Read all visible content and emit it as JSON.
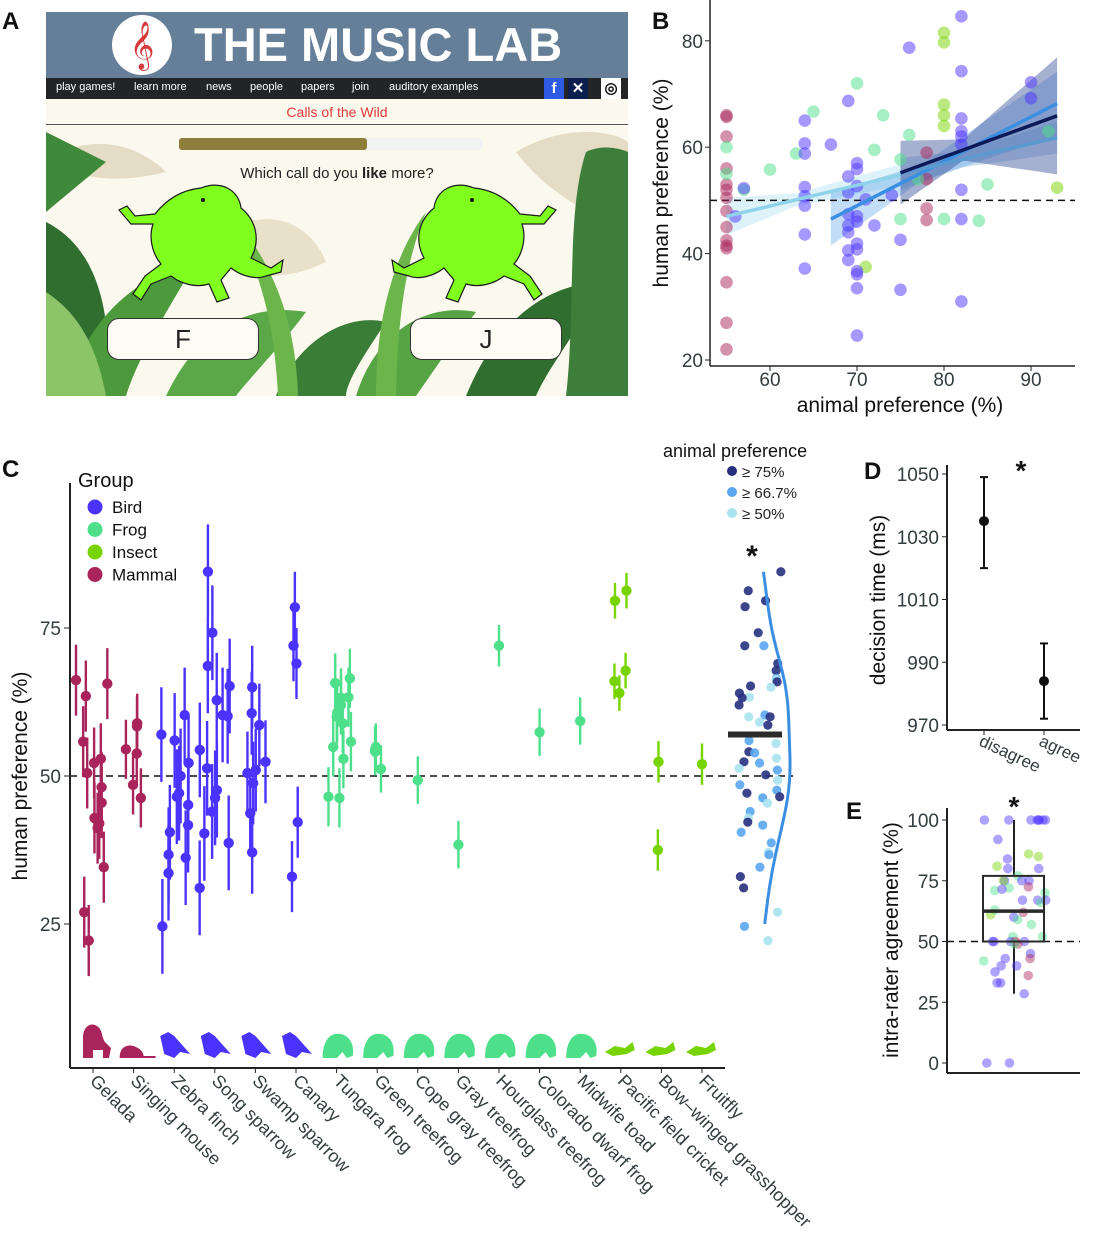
{
  "panel_labels": {
    "a": "A",
    "b": "B",
    "c": "C",
    "d": "D",
    "e": "E"
  },
  "panel_a": {
    "site_title": "THE MUSIC LAB",
    "logo_glyph": "𝄞",
    "nav": [
      "play games!",
      "learn more",
      "news",
      "people",
      "papers",
      "join",
      "auditory examples"
    ],
    "social": [
      {
        "icon": "facebook-icon",
        "glyph": "f",
        "color": "#2d5be3"
      },
      {
        "icon": "butterfly-icon",
        "glyph": "✕",
        "color": "#0b1e4e"
      },
      {
        "icon": "instagram-icon",
        "glyph": "◎",
        "color": "#ffffff"
      }
    ],
    "game_title": "Calls of the Wild",
    "progress": 0.62,
    "question_before": "Which call do you ",
    "question_bold": "like",
    "question_after": " more?",
    "button_left": "F",
    "button_right": "J"
  },
  "colors": {
    "Bird": "#4b33ff",
    "Frog": "#4ddf8a",
    "Insect": "#78d400",
    "Mammal": "#a8245a",
    "tier1": "#27307f",
    "tier2": "#5aa6f0",
    "tier3": "#a9e3f0",
    "density": "#3a8fe0"
  },
  "chart_data": [
    {
      "panel": "B",
      "type": "scatter",
      "xlabel": "animal preference (%)",
      "ylabel": "human preference (%)",
      "xticks": [
        60,
        70,
        80,
        90
      ],
      "yticks": [
        20,
        40,
        60,
        80
      ],
      "xlim": [
        53,
        95
      ],
      "ylim": [
        19,
        87
      ],
      "reference_line_y": 50,
      "points": {
        "Mammal": [
          [
            55,
            66
          ],
          [
            55,
            65.7
          ],
          [
            55,
            62
          ],
          [
            55,
            56
          ],
          [
            55,
            53
          ],
          [
            55,
            52
          ],
          [
            55,
            50.5
          ],
          [
            55,
            48
          ],
          [
            55,
            45
          ],
          [
            55,
            42.5
          ],
          [
            55,
            41.5
          ],
          [
            55,
            41
          ],
          [
            55,
            34.6
          ],
          [
            55,
            27
          ],
          [
            55,
            22
          ],
          [
            78,
            59
          ],
          [
            78,
            54
          ],
          [
            78,
            48.5
          ],
          [
            78,
            46.3
          ]
        ],
        "Frog": [
          [
            55,
            60
          ],
          [
            55,
            55
          ],
          [
            57,
            52
          ],
          [
            60,
            55.8
          ],
          [
            63,
            58.8
          ],
          [
            65,
            66.7
          ],
          [
            70,
            72
          ],
          [
            72,
            59.5
          ],
          [
            73,
            66
          ],
          [
            75,
            57.7
          ],
          [
            75,
            46.5
          ],
          [
            76,
            62.3
          ],
          [
            77,
            54
          ],
          [
            80,
            46.5
          ],
          [
            84,
            46.2
          ],
          [
            85,
            53
          ],
          [
            92,
            63
          ]
        ],
        "Insect": [
          [
            80,
            81.5
          ],
          [
            80,
            79.7
          ],
          [
            80,
            68
          ],
          [
            80,
            66
          ],
          [
            80,
            64
          ],
          [
            71,
            37.5
          ],
          [
            93,
            52.4
          ]
        ],
        "Bird": [
          [
            56,
            47
          ],
          [
            57,
            52.3
          ],
          [
            64,
            65
          ],
          [
            64,
            60.7
          ],
          [
            64,
            58.8
          ],
          [
            64,
            52.5
          ],
          [
            64,
            50.8
          ],
          [
            64,
            49
          ],
          [
            64,
            43.6
          ],
          [
            64,
            37.2
          ],
          [
            67,
            60.5
          ],
          [
            69,
            68.7
          ],
          [
            69,
            54.5
          ],
          [
            69,
            51.5
          ],
          [
            69,
            47.4
          ],
          [
            69,
            45.3
          ],
          [
            69,
            44
          ],
          [
            69,
            40.6
          ],
          [
            69,
            38.8
          ],
          [
            70,
            57
          ],
          [
            70,
            55.9
          ],
          [
            70,
            52.7
          ],
          [
            70,
            47
          ],
          [
            70,
            46
          ],
          [
            70,
            41.9
          ],
          [
            70,
            40.8
          ],
          [
            70,
            36.7
          ],
          [
            70,
            36.1
          ],
          [
            70,
            33.5
          ],
          [
            70,
            24.6
          ],
          [
            71,
            50.2
          ],
          [
            72,
            45.3
          ],
          [
            74,
            51
          ],
          [
            75,
            42.6
          ],
          [
            75,
            33.2
          ],
          [
            76,
            78.7
          ],
          [
            82,
            84.6
          ],
          [
            82,
            74.3
          ],
          [
            82,
            65.4
          ],
          [
            82,
            63
          ],
          [
            82,
            62
          ],
          [
            82,
            60.5
          ],
          [
            82,
            52
          ],
          [
            82,
            46.5
          ],
          [
            82,
            31
          ],
          [
            90,
            72.2
          ],
          [
            90,
            69.2
          ]
        ]
      },
      "fits": [
        {
          "tier": "≥ 50%",
          "color": "#8fd3ea",
          "x": [
            55,
            75
          ],
          "y": [
            47,
            54.8
          ],
          "ci": [
            3.5,
            1.2,
            2
          ]
        },
        {
          "tier": "≥ 66.7%",
          "color": "#3a8fe0",
          "x": [
            67,
            93
          ],
          "y": [
            46.5,
            68.2
          ],
          "ci": [
            5,
            1.5,
            6
          ]
        },
        {
          "tier": "≥ 66.7% (upper)",
          "color": "#5a9ad0",
          "x": [
            75,
            93
          ],
          "y": [
            55,
            61.8
          ],
          "ci": [
            3,
            1.5,
            3
          ]
        },
        {
          "tier": "≥ 75%",
          "color": "#0d1a5a",
          "x": [
            75,
            93
          ],
          "y": [
            55.2,
            65.9
          ],
          "ci": [
            6,
            2,
            11
          ]
        }
      ]
    },
    {
      "panel": "C",
      "type": "scatter",
      "ylabel": "human preference (%)",
      "yticks": [
        25,
        50,
        75
      ],
      "ylim": [
        0,
        90
      ],
      "reference_line_y": 50,
      "legend_group": {
        "title": "Group",
        "entries": [
          "Bird",
          "Frog",
          "Insect",
          "Mammal"
        ],
        "placement": "top-left"
      },
      "legend_pref": {
        "title": "animal preference",
        "entries": [
          "≥ 75%",
          "≥ 66.7%",
          "≥ 50%"
        ],
        "placement": "top-right"
      },
      "species": [
        {
          "name": "Gelada",
          "group": "Mammal",
          "values": [
            66.2,
            65.6,
            63.5,
            55.8,
            52.9,
            52.2,
            50.5,
            48.1,
            45.5,
            42.9,
            42,
            41.2,
            34.6,
            27,
            22.2
          ],
          "ci": 6
        },
        {
          "name": "Singing mouse",
          "group": "Mammal",
          "values": [
            58.9,
            58.4,
            54.5,
            53.8,
            48.5,
            46.3
          ],
          "ci": 5
        },
        {
          "name": "Zebra finch",
          "group": "Bird",
          "values": [
            60.3,
            57,
            56,
            52.2,
            50,
            47.1,
            46.5,
            45.1,
            41.7,
            40.5,
            36.7,
            36.2,
            33.6,
            24.6
          ],
          "ci": 8
        },
        {
          "name": "Song sparrow",
          "group": "Bird",
          "values": [
            84.5,
            74.2,
            68.6,
            65.2,
            62.8,
            60.3,
            60.1,
            54.4,
            51.3,
            47.6,
            46.3,
            44,
            40.3,
            38.7,
            31.1
          ],
          "ci": 8
        },
        {
          "name": "Swamp sparrow",
          "group": "Bird",
          "values": [
            65,
            60.6,
            58.6,
            52.4,
            51,
            50.5,
            48.8,
            43.7,
            37.1
          ],
          "ci": 7
        },
        {
          "name": "Canary",
          "group": "Bird",
          "values": [
            78.5,
            72,
            69,
            42.2,
            33
          ],
          "ci": 6
        },
        {
          "name": "Tungara frog",
          "group": "Frog",
          "values": [
            66.5,
            65.7,
            63.3,
            63.2,
            62,
            60.7,
            60,
            58.9,
            55.8,
            54.9,
            52.9,
            46.5,
            46.3
          ],
          "ci": 5
        },
        {
          "name": "Green treefrog",
          "group": "Frog",
          "values": [
            54.1,
            54.4,
            54.9,
            51.2
          ],
          "ci": 4
        },
        {
          "name": "Cope gray treefrog",
          "group": "Frog",
          "values": [
            49.3
          ],
          "ci": 4
        },
        {
          "name": "Gray treefrog",
          "group": "Frog",
          "values": [
            38.4
          ],
          "ci": 4
        },
        {
          "name": "Hourglass treefrog",
          "group": "Frog",
          "values": [
            72
          ],
          "ci": 3.5
        },
        {
          "name": "Colorado dwarf frog",
          "group": "Frog",
          "values": [
            57.4
          ],
          "ci": 4
        },
        {
          "name": "Midwife toad",
          "group": "Frog",
          "values": [
            59.3
          ],
          "ci": 4
        },
        {
          "name": "Pacific field cricket",
          "group": "Insect",
          "values": [
            81.3,
            79.6,
            67.8,
            66,
            64
          ],
          "ci": 3
        },
        {
          "name": "Bow–winged grasshopper",
          "group": "Insect",
          "values": [
            52.4,
            37.5
          ],
          "ci": 3.5
        },
        {
          "name": "Fruitfly",
          "group": "Insect",
          "values": [
            52
          ],
          "ci": 3.5
        }
      ],
      "pooled": {
        "significance": "*",
        "mean": 57,
        "points": [
          [
            84.5,
            1
          ],
          [
            81.3,
            1
          ],
          [
            79.6,
            1
          ],
          [
            78.6,
            1
          ],
          [
            74.2,
            1
          ],
          [
            72,
            2
          ],
          [
            72,
            1
          ],
          [
            69,
            1
          ],
          [
            67.8,
            1
          ],
          [
            66.5,
            2
          ],
          [
            66.3,
            3
          ],
          [
            65.9,
            1
          ],
          [
            65,
            3
          ],
          [
            65.2,
            1
          ],
          [
            64,
            1
          ],
          [
            63.3,
            3
          ],
          [
            63.2,
            1
          ],
          [
            62,
            1
          ],
          [
            60.3,
            2
          ],
          [
            60,
            3
          ],
          [
            60,
            1
          ],
          [
            59.1,
            3
          ],
          [
            58.6,
            1
          ],
          [
            56,
            2
          ],
          [
            55.5,
            3
          ],
          [
            54.1,
            1
          ],
          [
            53.9,
            2
          ],
          [
            53,
            3
          ],
          [
            52.4,
            1
          ],
          [
            52.2,
            2
          ],
          [
            51.3,
            3
          ],
          [
            51,
            2
          ],
          [
            50.2,
            1
          ],
          [
            49.3,
            3
          ],
          [
            48.5,
            2
          ],
          [
            47.6,
            2
          ],
          [
            47.1,
            1
          ],
          [
            46.5,
            1
          ],
          [
            46.3,
            2
          ],
          [
            45.4,
            3
          ],
          [
            44,
            2
          ],
          [
            42.9,
            3
          ],
          [
            42.2,
            1
          ],
          [
            41.7,
            2
          ],
          [
            40.5,
            2
          ],
          [
            38.7,
            2
          ],
          [
            37.1,
            3
          ],
          [
            36.7,
            2
          ],
          [
            34.6,
            2
          ],
          [
            33,
            1
          ],
          [
            31.1,
            1
          ],
          [
            27,
            3
          ],
          [
            24.6,
            2
          ],
          [
            22.2,
            3
          ]
        ]
      }
    },
    {
      "panel": "D",
      "type": "scatter",
      "ylabel": "decision time (ms)",
      "categories": [
        "disagree",
        "agree"
      ],
      "values": [
        1035,
        984
      ],
      "error_low": [
        1020,
        972
      ],
      "error_high": [
        1049,
        996
      ],
      "yticks": [
        970,
        990,
        1010,
        1030,
        1050
      ],
      "ylim": [
        968,
        1052
      ],
      "significance": "*"
    },
    {
      "panel": "E",
      "type": "box",
      "ylabel": "intra-rater agreement (%)",
      "yticks": [
        0,
        25,
        50,
        75,
        100
      ],
      "ylim": [
        0,
        100
      ],
      "reference_line_y": 50,
      "box": {
        "whisker_low": 28.5,
        "q1": 50,
        "median": 62.5,
        "q3": 77,
        "whisker_high": 100
      },
      "significance": "*",
      "points": [
        [
          100,
          "Bird"
        ],
        [
          100,
          "Bird"
        ],
        [
          100,
          "Bird"
        ],
        [
          100,
          "Bird"
        ],
        [
          100,
          "Bird"
        ],
        [
          100,
          "Bird"
        ],
        [
          100,
          "Bird"
        ],
        [
          100,
          "Bird"
        ],
        [
          92,
          "Bird"
        ],
        [
          86,
          "Insect"
        ],
        [
          85,
          "Insect"
        ],
        [
          84,
          "Bird"
        ],
        [
          81,
          "Insect"
        ],
        [
          80,
          "Bird"
        ],
        [
          80,
          "Bird"
        ],
        [
          77,
          "Frog"
        ],
        [
          75,
          "Bird"
        ],
        [
          75,
          "Bird"
        ],
        [
          75,
          "Bird"
        ],
        [
          75,
          "Insect"
        ],
        [
          72.5,
          "Mammal"
        ],
        [
          72,
          "Frog"
        ],
        [
          71,
          "Frog"
        ],
        [
          71.5,
          "Bird"
        ],
        [
          70,
          "Frog"
        ],
        [
          67,
          "Bird"
        ],
        [
          67,
          "Bird"
        ],
        [
          67,
          "Bird"
        ],
        [
          66,
          "Frog"
        ],
        [
          63,
          "Frog"
        ],
        [
          62,
          "Mammal"
        ],
        [
          61,
          "Insect"
        ],
        [
          60,
          "Bird"
        ],
        [
          59,
          "Frog"
        ],
        [
          57,
          "Frog"
        ],
        [
          52,
          "Frog"
        ],
        [
          52,
          "Frog"
        ],
        [
          50,
          "Bird"
        ],
        [
          50,
          "Bird"
        ],
        [
          50,
          "Bird"
        ],
        [
          50,
          "Bird"
        ],
        [
          50,
          "Mammal"
        ],
        [
          49,
          "Mammal"
        ],
        [
          49,
          "Frog"
        ],
        [
          45,
          "Bird"
        ],
        [
          43,
          "Bird"
        ],
        [
          43,
          "Mammal"
        ],
        [
          42,
          "Frog"
        ],
        [
          40,
          "Bird"
        ],
        [
          40,
          "Bird"
        ],
        [
          37.5,
          "Bird"
        ],
        [
          36,
          "Mammal"
        ],
        [
          33,
          "Bird"
        ],
        [
          33,
          "Bird"
        ],
        [
          28.5,
          "Bird"
        ],
        [
          0,
          "Bird"
        ],
        [
          0,
          "Bird"
        ]
      ]
    }
  ]
}
